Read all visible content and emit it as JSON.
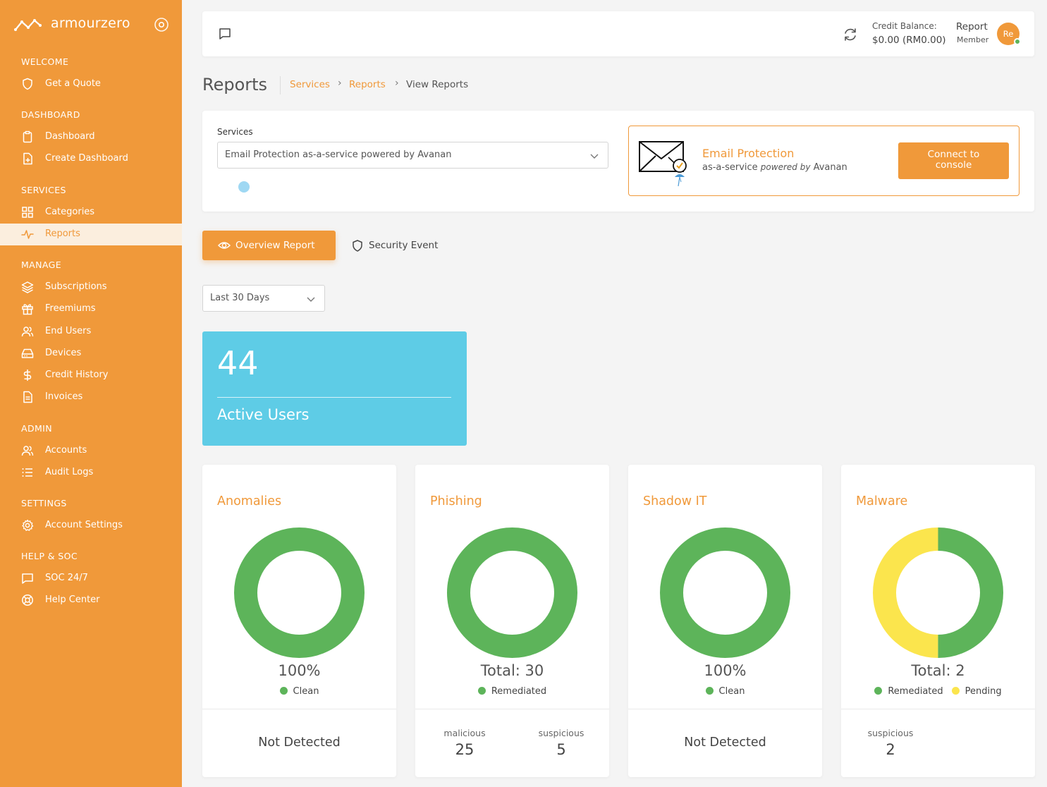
{
  "brand": {
    "name": "armourzero"
  },
  "sidebar": {
    "sections": [
      {
        "title": "WELCOME",
        "items": [
          {
            "label": "Get a Quote",
            "icon": "shield-icon"
          }
        ]
      },
      {
        "title": "DASHBOARD",
        "items": [
          {
            "label": "Dashboard",
            "icon": "clipboard-icon"
          },
          {
            "label": "Create Dashboard",
            "icon": "file-plus-icon"
          }
        ]
      },
      {
        "title": "SERVICES",
        "items": [
          {
            "label": "Categories",
            "icon": "grid-icon"
          },
          {
            "label": "Reports",
            "icon": "activity-icon",
            "active": true
          }
        ]
      },
      {
        "title": "MANAGE",
        "items": [
          {
            "label": "Subscriptions",
            "icon": "layers-icon"
          },
          {
            "label": "Freemiums",
            "icon": "gift-icon"
          },
          {
            "label": "End Users",
            "icon": "users-icon"
          },
          {
            "label": "Devices",
            "icon": "hard-drive-icon"
          },
          {
            "label": "Credit History",
            "icon": "dollar-icon"
          },
          {
            "label": "Invoices",
            "icon": "file-text-icon"
          }
        ]
      },
      {
        "title": "ADMIN",
        "items": [
          {
            "label": "Accounts",
            "icon": "users-icon"
          },
          {
            "label": "Audit Logs",
            "icon": "list-icon"
          }
        ]
      },
      {
        "title": "SETTINGS",
        "items": [
          {
            "label": "Account Settings",
            "icon": "gear-icon"
          }
        ]
      },
      {
        "title": "HELP & SOC",
        "items": [
          {
            "label": "SOC 24/7",
            "icon": "message-icon"
          },
          {
            "label": "Help Center",
            "icon": "life-buoy-icon"
          }
        ]
      }
    ]
  },
  "topbar": {
    "credit_label": "Credit Balance:",
    "credit_value": "$0.00 (RM0.00)",
    "user_name": "Report",
    "user_role": "Member",
    "avatar_initials": "Re"
  },
  "page": {
    "title": "Reports",
    "breadcrumb": [
      "Services",
      "Reports",
      "View Reports"
    ]
  },
  "services": {
    "label": "Services",
    "selected": "Email Protection as-a-service powered by Avanan",
    "card": {
      "name": "Email Protection",
      "desc_prefix": "as-a-service",
      "desc_powered": "powered by",
      "desc_vendor": "Avanan",
      "connect_line1": "Connect to",
      "connect_line2": "console"
    }
  },
  "tabs": {
    "overview": "Overview Report",
    "security": "Security Event"
  },
  "date_range": {
    "selected": "Last 30 Days"
  },
  "active_users": {
    "count": "44",
    "label": "Active Users"
  },
  "colors": {
    "accent": "#f0993a",
    "green": "#5db45a",
    "yellow": "#fbe54d",
    "cyan": "#5ecce6"
  },
  "stats": [
    {
      "title": "Anomalies",
      "main": "100%",
      "legend": [
        {
          "label": "Clean",
          "color": "#5db45a"
        }
      ],
      "segments": [
        {
          "value": 1,
          "color": "#5db45a"
        }
      ],
      "footer_text": "Not Detected"
    },
    {
      "title": "Phishing",
      "main": "Total: 30",
      "legend": [
        {
          "label": "Remediated",
          "color": "#5db45a"
        }
      ],
      "segments": [
        {
          "value": 30,
          "color": "#5db45a"
        }
      ],
      "metrics": [
        {
          "label": "malicious",
          "value": "25"
        },
        {
          "label": "suspicious",
          "value": "5"
        }
      ]
    },
    {
      "title": "Shadow IT",
      "main": "100%",
      "legend": [
        {
          "label": "Clean",
          "color": "#5db45a"
        }
      ],
      "segments": [
        {
          "value": 1,
          "color": "#5db45a"
        }
      ],
      "footer_text": "Not Detected"
    },
    {
      "title": "Malware",
      "main": "Total: 2",
      "legend": [
        {
          "label": "Remediated",
          "color": "#5db45a"
        },
        {
          "label": "Pending",
          "color": "#fbe54d"
        }
      ],
      "segments": [
        {
          "value": 1,
          "color": "#5db45a"
        },
        {
          "value": 1,
          "color": "#fbe54d"
        }
      ],
      "metrics": [
        {
          "label": "suspicious",
          "value": "2"
        }
      ]
    }
  ]
}
